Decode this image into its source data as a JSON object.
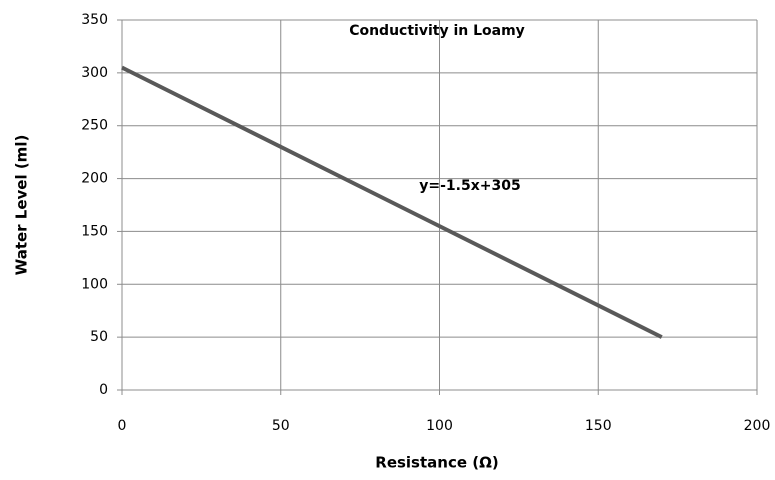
{
  "chart_data": {
    "type": "line",
    "title": "Conductivity in Loamy",
    "annotation": "y=-1.5x+305",
    "x_label": "Resistance (Ω)",
    "y_label": "Water Level (ml)",
    "x": [
      0,
      170
    ],
    "series": [
      {
        "color": "#595959",
        "values": [
          305,
          50
        ]
      }
    ],
    "xlim": [
      0,
      200
    ],
    "xticks": [
      0,
      50,
      100,
      150,
      200
    ],
    "ylim": [
      0,
      350
    ],
    "yticks": [
      0,
      50,
      100,
      150,
      200,
      250,
      300,
      350
    ],
    "grid": true
  }
}
